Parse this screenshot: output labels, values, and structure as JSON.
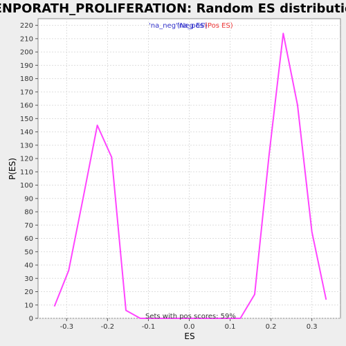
{
  "colors": {
    "line": "#ff44ff",
    "background": "#eeeeee",
    "plot_background": "#ffffff",
    "grid": "#dddddd",
    "legend_neg": "#3333cc",
    "legend_pos": "#ee3333",
    "legend_na": "#3333cc"
  },
  "chart_data": {
    "type": "line",
    "title": "BENPORATH_PROLIFERATION: Random ES distribution",
    "xlabel": "ES",
    "ylabel": "P(ES)",
    "xlim": [
      -0.37,
      0.37
    ],
    "ylim": [
      0,
      225
    ],
    "grid": true,
    "x_ticks": [
      -0.3,
      -0.2,
      -0.1,
      0.0,
      0.1,
      0.2,
      0.3
    ],
    "x_tick_labels": [
      "-0.3",
      "-0.2",
      "-0.1",
      "0.0",
      "0.1",
      "0.2",
      "0.3"
    ],
    "y_ticks": [
      0,
      10,
      20,
      30,
      40,
      50,
      60,
      70,
      80,
      90,
      100,
      110,
      120,
      130,
      140,
      150,
      160,
      170,
      180,
      190,
      200,
      210,
      220
    ],
    "y_tick_labels": [
      "0",
      "10",
      "20",
      "30",
      "40",
      "50",
      "60",
      "70",
      "80",
      "90",
      "100",
      "110",
      "120",
      "130",
      "140",
      "150",
      "160",
      "170",
      "180",
      "190",
      "200",
      "210",
      "220"
    ],
    "legend": {
      "position": "top-center",
      "items": [
        {
          "label": "'na_neg'",
          "color": "#3333cc"
        },
        {
          "label": "(Neg ES)",
          "color": "#3333cc"
        },
        {
          "label": "'na_pos'",
          "color": "#3333cc"
        },
        {
          "label": "(Pos ES)",
          "color": "#ee3333"
        }
      ]
    },
    "annotation": "Sets with pos scores: 59%",
    "series": [
      {
        "x": [
          -0.33,
          -0.295,
          -0.26,
          -0.225,
          -0.19,
          -0.155,
          -0.12,
          -0.085,
          -0.05,
          -0.015,
          0.02,
          0.055,
          0.09,
          0.125,
          0.16,
          0.195,
          0.23,
          0.265,
          0.3,
          0.335
        ],
        "values": [
          9,
          36,
          90,
          145,
          121,
          6,
          0,
          0,
          0,
          0,
          0,
          0,
          0,
          0,
          18,
          122,
          214,
          160,
          65,
          14
        ]
      }
    ]
  }
}
